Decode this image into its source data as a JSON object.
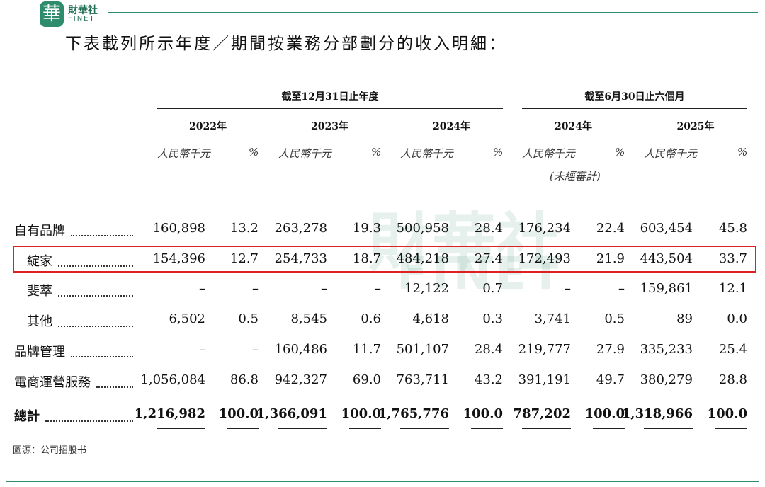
{
  "header": {
    "logo": "華",
    "brand": "財華社",
    "brand_en": "FINET"
  },
  "title": "下表載列所示年度／期間按業務分部劃分的收入明細：",
  "watermark": {
    "text": "財華社",
    "text_en": "FINET"
  },
  "table": {
    "group_headers": [
      "截至12月31日止年度",
      "截至6月30日止六個月"
    ],
    "years": [
      "2022年",
      "2023年",
      "2024年",
      "2024年",
      "2025年"
    ],
    "unit": "人民幣千元",
    "pct": "%",
    "unaudited": "(未經審計)",
    "rows": [
      {
        "label": "自有品牌",
        "values": [
          "160,898",
          "13.2",
          "263,278",
          "19.3",
          "500,958",
          "28.4",
          "176,234",
          "22.4",
          "603,454",
          "45.8"
        ]
      },
      {
        "label": "綻家",
        "values": [
          "154,396",
          "12.7",
          "254,733",
          "18.7",
          "484,218",
          "27.4",
          "172,493",
          "21.9",
          "443,504",
          "33.7"
        ]
      },
      {
        "label": "斐萃",
        "values": [
          "–",
          "–",
          "–",
          "–",
          "12,122",
          "0.7",
          "–",
          "–",
          "159,861",
          "12.1"
        ]
      },
      {
        "label": "其他",
        "values": [
          "6,502",
          "0.5",
          "8,545",
          "0.6",
          "4,618",
          "0.3",
          "3,741",
          "0.5",
          "89",
          "0.0"
        ]
      },
      {
        "label": "品牌管理",
        "values": [
          "–",
          "–",
          "160,486",
          "11.7",
          "501,107",
          "28.4",
          "219,777",
          "27.9",
          "335,233",
          "25.4"
        ]
      },
      {
        "label": "電商運營服務",
        "values": [
          "1,056,084",
          "86.8",
          "942,327",
          "69.0",
          "763,711",
          "43.2",
          "391,191",
          "49.7",
          "380,279",
          "28.8"
        ]
      },
      {
        "label": "總計",
        "values": [
          "1,216,982",
          "100.0",
          "1,366,091",
          "100.0",
          "1,765,776",
          "100.0",
          "787,202",
          "100.0",
          "1,318,966",
          "100.0"
        ]
      }
    ]
  },
  "source": "圖源：公司招股书"
}
